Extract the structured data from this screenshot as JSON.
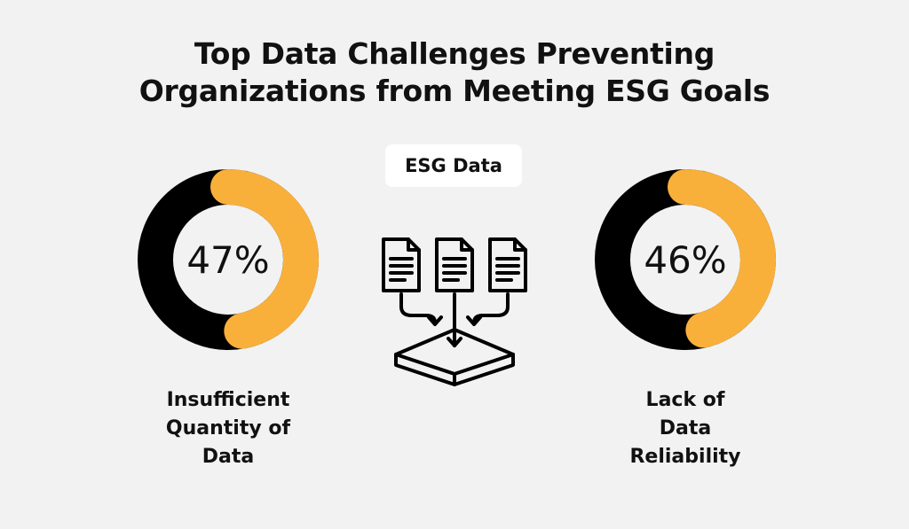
{
  "title": {
    "line1": "Top Data Challenges Preventing",
    "line2": "Organizations from Meeting ESG Goals"
  },
  "badge": {
    "label": "ESG Data"
  },
  "colors": {
    "accent": "#F9B03A",
    "dark": "#000000",
    "background": "#F2F2F2"
  },
  "chart_data": [
    {
      "type": "pie",
      "value": 47,
      "value_label": "47%",
      "label_lines": [
        "Insufficient",
        "Quantity of",
        "Data"
      ],
      "accent_fraction": 0.47
    },
    {
      "type": "pie",
      "value": 46,
      "value_label": "46%",
      "label_lines": [
        "Lack of",
        "Data",
        "Reliability"
      ],
      "accent_fraction": 0.46
    }
  ],
  "icons": {
    "center": "documents-into-storage-icon"
  }
}
